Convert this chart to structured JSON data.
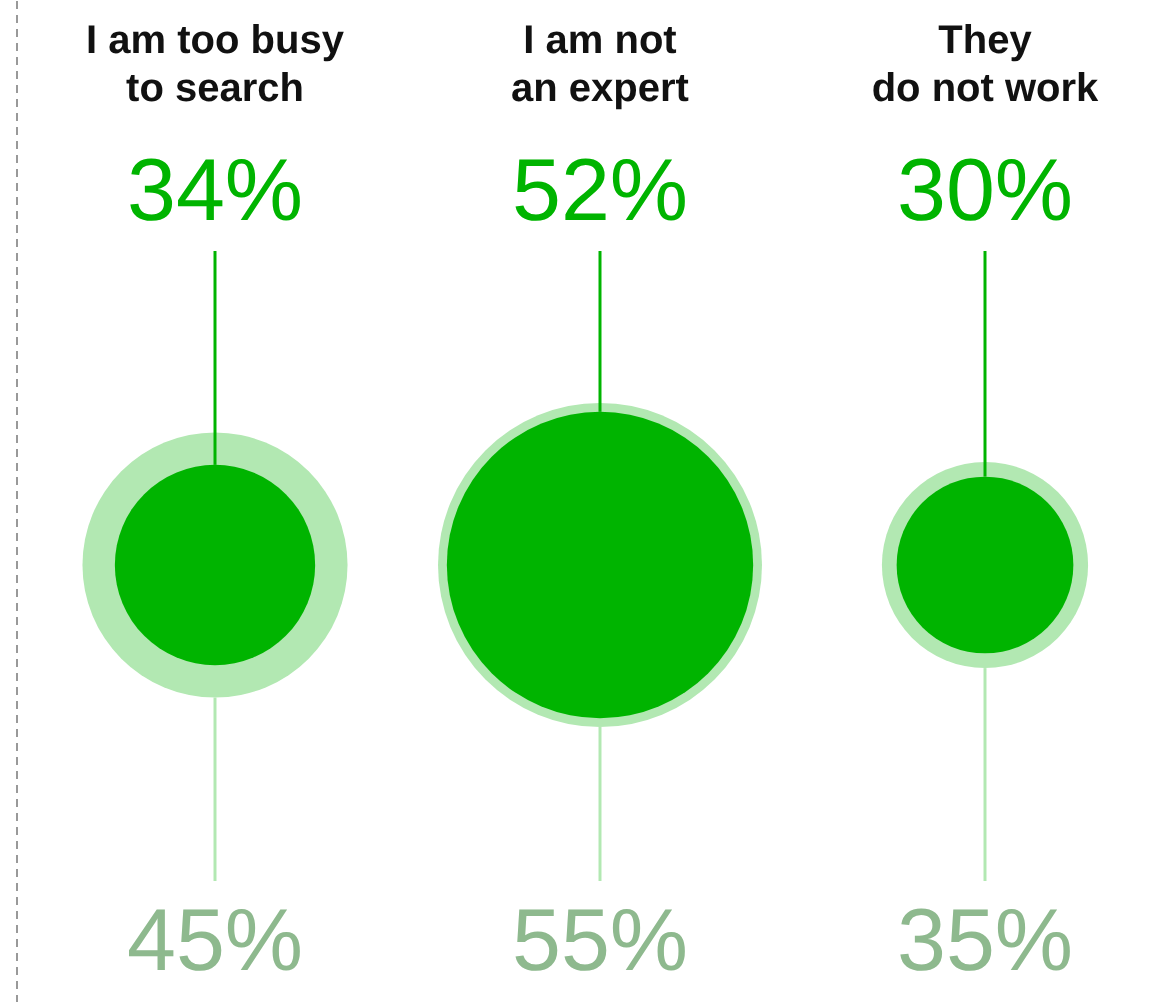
{
  "chart_data": {
    "type": "other",
    "categories": [
      "I am too busy\nto search",
      "I am not\nan expert",
      "They\ndo not work"
    ],
    "series": [
      {
        "color": "#00b400",
        "values": [
          34,
          52,
          30
        ],
        "value_labels": [
          "34%",
          "52%",
          "30%"
        ]
      },
      {
        "color": "#b2e8b2",
        "values": [
          45,
          55,
          35
        ],
        "value_labels": [
          "45%",
          "55%",
          "35%"
        ]
      }
    ]
  }
}
